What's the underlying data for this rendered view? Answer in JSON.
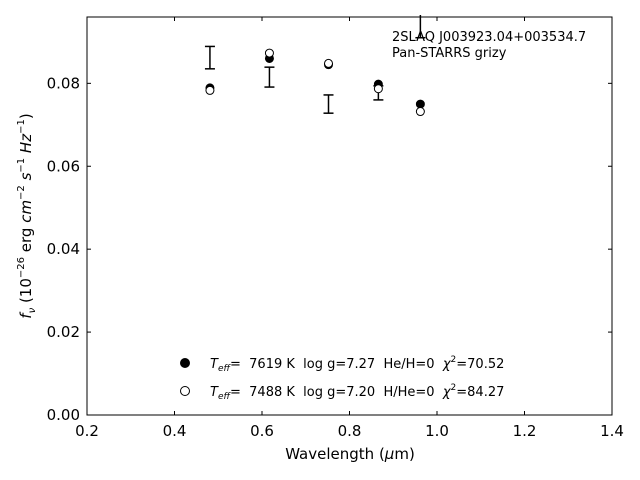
{
  "chart_data": {
    "type": "scatter",
    "title": "",
    "xlabel": "Wavelength (μm)",
    "ylabel": "fν (10⁻²⁶ erg cm⁻² s⁻¹ Hz⁻¹)",
    "xlim": [
      0.2,
      1.4
    ],
    "ylim": [
      0.0,
      0.096
    ],
    "xticks": [
      "0.2",
      "0.4",
      "0.6",
      "0.8",
      "1.0",
      "1.2",
      "1.4"
    ],
    "yticks": [
      "0.00",
      "0.02",
      "0.04",
      "0.06",
      "0.08"
    ],
    "grid": false,
    "legend_position": "lower-center",
    "annotations": [
      "2SLAQ J003923.04+003534.7",
      "Pan-STARRS grizy"
    ],
    "observed": {
      "x": [
        0.481,
        0.617,
        0.752,
        0.866,
        0.962
      ],
      "y": [
        0.0862,
        0.0815,
        0.075,
        0.0777,
        0.095
      ],
      "yerr": [
        0.0027,
        0.0024,
        0.0022,
        0.0017,
        0.004
      ]
    },
    "series": [
      {
        "name": "Teff= 7619 K log g=7.27 He/H=0 χ²=70.52",
        "marker": "filled-circle",
        "x": [
          0.481,
          0.617,
          0.752,
          0.866,
          0.962
        ],
        "y": [
          0.0789,
          0.086,
          0.0845,
          0.0798,
          0.075
        ]
      },
      {
        "name": "Teff= 7488 K log g=7.20 H/He=0 χ²=84.27",
        "marker": "open-circle",
        "x": [
          0.481,
          0.617,
          0.752,
          0.866,
          0.962
        ],
        "y": [
          0.0783,
          0.0873,
          0.0848,
          0.0787,
          0.0732
        ]
      }
    ],
    "legend": [
      {
        "teff_label": "T",
        "teff_sub": "eff",
        "text": "=  7619 K  log g=7.27  He/H=0  ",
        "chi": "χ",
        "chi_sup": "2",
        "chi_val": "=70.52"
      },
      {
        "teff_label": "T",
        "teff_sub": "eff",
        "text": "=  7488 K  log g=7.20  H/He=0  ",
        "chi": "χ",
        "chi_sup": "2",
        "chi_val": "=84.27"
      }
    ],
    "ylabel_parts": {
      "f": "f",
      "nu": "ν",
      "a": " (10",
      "e1": "−26",
      "b": " erg ",
      "cm": "cm",
      "e2": "−2",
      "s": "s",
      "e3": "−1",
      "hz": "Hz",
      "e4": "−1",
      "close": ")"
    },
    "xlabel_parts": {
      "a": "Wavelength (",
      "mu": "μ",
      "b": "m)"
    }
  }
}
